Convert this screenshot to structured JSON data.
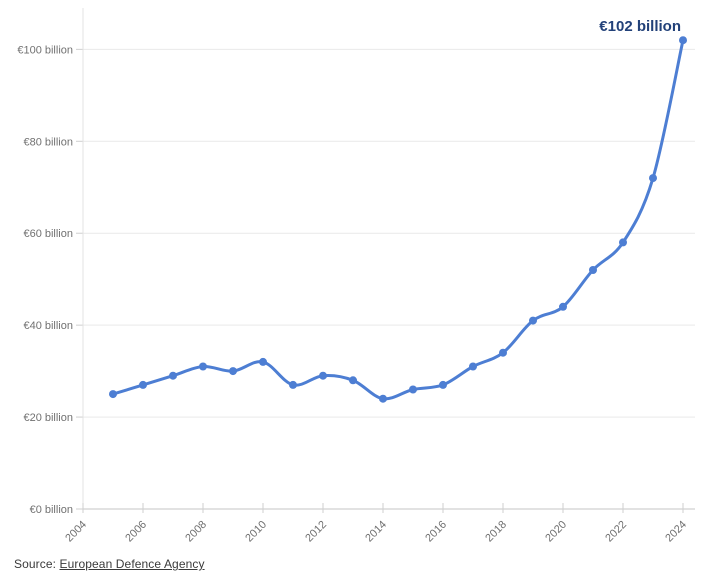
{
  "chart_data": {
    "type": "line",
    "title": "",
    "x": [
      2005,
      2006,
      2007,
      2008,
      2009,
      2010,
      2011,
      2012,
      2013,
      2014,
      2015,
      2016,
      2017,
      2018,
      2019,
      2020,
      2021,
      2022,
      2023,
      2024
    ],
    "values": [
      25,
      27,
      29,
      31,
      30,
      32,
      27,
      29,
      28,
      24,
      26,
      27,
      31,
      34,
      41,
      44,
      52,
      58,
      72,
      102
    ],
    "unit": "€ billion",
    "xlim": [
      2004,
      2024.4
    ],
    "ylim": [
      0,
      109
    ],
    "yticks": [
      0,
      20,
      40,
      60,
      80,
      100
    ],
    "ytick_labels": [
      "€0 billion",
      "€20 billion",
      "€40 billion",
      "€60 billion",
      "€80 billion",
      "€100 billion"
    ],
    "xticks": [
      2004,
      2006,
      2008,
      2010,
      2012,
      2014,
      2016,
      2018,
      2020,
      2022,
      2024
    ],
    "xtick_labels": [
      "2004",
      "2006",
      "2008",
      "2010",
      "2012",
      "2014",
      "2016",
      "2018",
      "2020",
      "2022",
      "2024"
    ],
    "grid": true,
    "legend": "none",
    "annotation": {
      "text": "€102 billion",
      "x": 2024,
      "y": 102
    },
    "colors": {
      "line": "#4d7ed3",
      "point": "#4d7ed3",
      "annotation_text": "#224179",
      "grid": "#e9e9e9",
      "axis": "#c6c6c6",
      "axis_y": "#e3e3e3",
      "tick": "#cfcfcf",
      "tick_label": "#717171"
    }
  },
  "source": {
    "prefix": "Source: ",
    "link_text": "European Defence Agency"
  }
}
